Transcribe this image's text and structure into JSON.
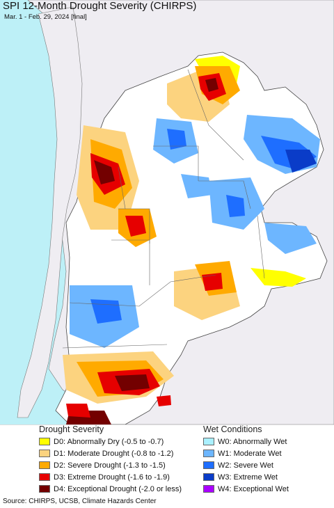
{
  "title": "SPI 12-Month Drought Severity (CHIRPS)",
  "subtitle": "Mar. 1 - Feb. 29, 2024 [final]",
  "map": {
    "ocean_color": "#bdf0f7",
    "land_outside_color": "#efedf2",
    "land_region_color": "#ffffff",
    "border_color": "#555555"
  },
  "legend": {
    "drought": {
      "heading": "Drought Severity",
      "items": [
        {
          "code": "D0",
          "label": "D0: Abnormally Dry (-0.5 to -0.7)",
          "color": "#ffff00"
        },
        {
          "code": "D1",
          "label": "D1: Moderate Drought (-0.8 to -1.2)",
          "color": "#fcd37f"
        },
        {
          "code": "D2",
          "label": "D2: Severe Drought (-1.3 to -1.5)",
          "color": "#ffaa00"
        },
        {
          "code": "D3",
          "label": "D3: Extreme Drought (-1.6 to -1.9)",
          "color": "#e60000"
        },
        {
          "code": "D4",
          "label": "D4: Exceptional Drought (-2.0 or less)",
          "color": "#730000"
        }
      ]
    },
    "wet": {
      "heading": "Wet Conditions",
      "items": [
        {
          "code": "W0",
          "label": "W0: Abnormally Wet",
          "color": "#aaf0ff"
        },
        {
          "code": "W1",
          "label": "W1: Moderate Wet",
          "color": "#6db6ff"
        },
        {
          "code": "W2",
          "label": "W2: Severe Wet",
          "color": "#1e6eff"
        },
        {
          "code": "W3",
          "label": "W3: Extreme Wet",
          "color": "#0a3cc8"
        },
        {
          "code": "W4",
          "label": "W4: Exceptional Wet",
          "color": "#aa00ff"
        }
      ]
    }
  },
  "source": "Source: CHIRPS, UCSB, Climate Hazards Center"
}
